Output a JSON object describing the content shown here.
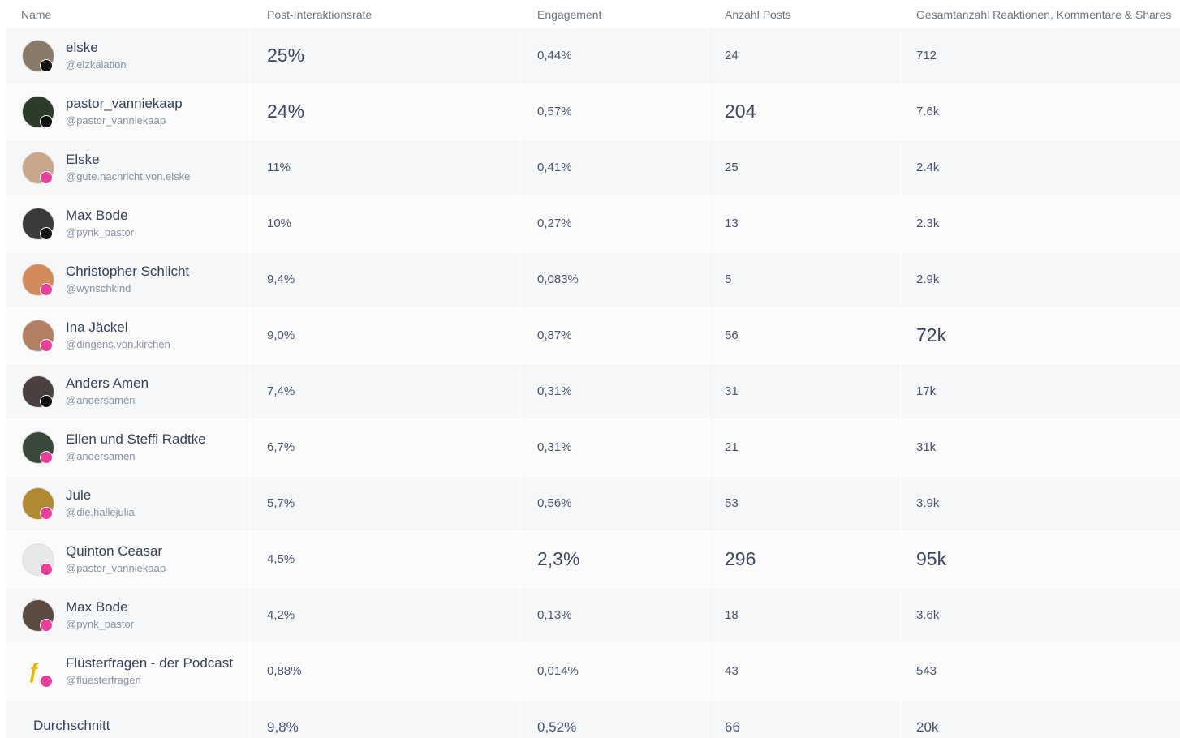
{
  "header": {
    "columns": [
      "Name",
      "Post-Interaktionsrate",
      "Engagement",
      "Anzahl Posts",
      "Gesamtanzahl Reaktionen, Kommentare & Shares"
    ]
  },
  "table": {
    "rows": [
      {
        "name": "elske",
        "handle": "@elzkalation",
        "cells": [
          "25%",
          "0,44%",
          "24",
          "712"
        ]
      },
      {
        "name": "pastor_vanniekaap",
        "handle": "@pastor_vanniekaap",
        "cells": [
          "24%",
          "0,57%",
          "204",
          "7.6k"
        ]
      },
      {
        "name": "Elske",
        "handle": "@gute.nachricht.von.elske",
        "cells": [
          "11%",
          "0,41%",
          "25",
          "2.4k"
        ]
      },
      {
        "name": "Max Bode",
        "handle": "@pynk_pastor",
        "cells": [
          "10%",
          "0,27%",
          "13",
          "2.3k"
        ]
      },
      {
        "name": "Christopher Schlicht",
        "handle": "@wynschkind",
        "cells": [
          "9,4%",
          "0,083%",
          "5",
          "2.9k"
        ]
      },
      {
        "name": "Ina Jäckel",
        "handle": "@dingens.von.kirchen",
        "cells": [
          "9,0%",
          "0,87%",
          "56",
          "72k"
        ]
      },
      {
        "name": "Anders Amen",
        "handle": "@andersamen",
        "cells": [
          "7,4%",
          "0,31%",
          "31",
          "17k"
        ]
      },
      {
        "name": "Ellen und Steffi Radtke",
        "handle": "@andersamen",
        "cells": [
          "6,7%",
          "0,31%",
          "21",
          "31k"
        ]
      },
      {
        "name": "Jule",
        "handle": "@die.hallejulia",
        "cells": [
          "5,7%",
          "0,56%",
          "53",
          "3.9k"
        ]
      },
      {
        "name": "Quinton Ceasar",
        "handle": "@pastor_vanniekaap",
        "cells": [
          "4,5%",
          "2,3%",
          "296",
          "95k"
        ]
      },
      {
        "name": "Max Bode",
        "handle": "@pynk_pastor",
        "cells": [
          "4,2%",
          "0,13%",
          "18",
          "3.6k"
        ]
      },
      {
        "name": "Flüsterfragen - der Podcast",
        "handle": "@fluesterfragen",
        "cells": [
          "0,88%",
          "0,014%",
          "43",
          "543"
        ]
      }
    ]
  },
  "footer": {
    "label": "Durchschnitt",
    "cells": [
      "9,8%",
      "0,52%",
      "66",
      "20k"
    ]
  }
}
